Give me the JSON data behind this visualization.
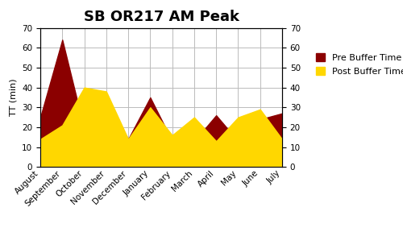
{
  "title": "SB OR217 AM Peak",
  "ylabel_left": "TT (min)",
  "months": [
    "August",
    "September",
    "October",
    "November",
    "December",
    "January",
    "February",
    "March",
    "April",
    "May",
    "June",
    "July"
  ],
  "pre_buffer": [
    25,
    64,
    19,
    33,
    14,
    35,
    13,
    13,
    26,
    13,
    24,
    27
  ],
  "post_buffer": [
    14,
    21,
    40,
    38,
    14,
    30,
    16,
    25,
    13,
    25,
    29,
    14
  ],
  "ylim": [
    0,
    70
  ],
  "yticks": [
    0,
    10,
    20,
    30,
    40,
    50,
    60,
    70
  ],
  "pre_color": "#8B0000",
  "post_color": "#FFD700",
  "background_color": "#ffffff",
  "grid_color": "#bbbbbb",
  "title_fontsize": 13,
  "tick_fontsize": 7.5,
  "ylabel_fontsize": 8,
  "legend_pre": "Pre Buffer Time",
  "legend_post": "Post Buffer Time",
  "legend_fontsize": 8
}
